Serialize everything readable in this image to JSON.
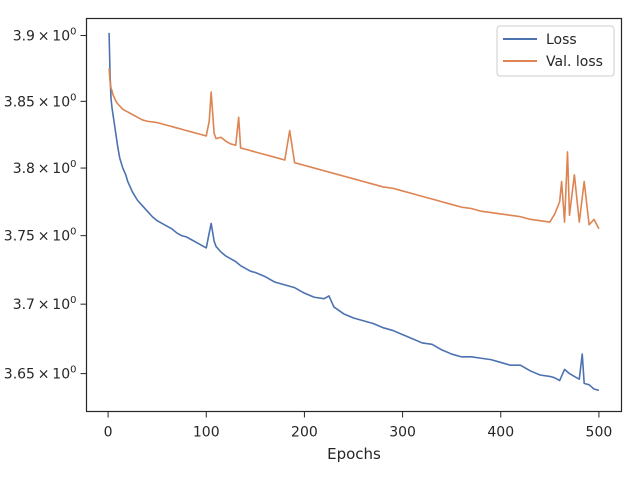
{
  "chart_data": {
    "type": "line",
    "title": "",
    "xlabel": "Epochs",
    "ylabel": "",
    "yscale": "log",
    "xlim": [
      -22,
      523
    ],
    "ylim": [
      3.623,
      3.913
    ],
    "grid": false,
    "legend_position": "top-right",
    "x_ticks": [
      {
        "value": 0,
        "label": "0"
      },
      {
        "value": 100,
        "label": "100"
      },
      {
        "value": 200,
        "label": "200"
      },
      {
        "value": 300,
        "label": "300"
      },
      {
        "value": 400,
        "label": "400"
      },
      {
        "value": 500,
        "label": "500"
      }
    ],
    "y_ticks": [
      {
        "value": 3.65,
        "mantissa": "3.65",
        "base": "10",
        "exp": "0"
      },
      {
        "value": 3.7,
        "mantissa": "3.7",
        "base": "10",
        "exp": "0"
      },
      {
        "value": 3.75,
        "mantissa": "3.75",
        "base": "10",
        "exp": "0"
      },
      {
        "value": 3.8,
        "mantissa": "3.8",
        "base": "10",
        "exp": "0"
      },
      {
        "value": 3.85,
        "mantissa": "3.85",
        "base": "10",
        "exp": "0"
      },
      {
        "value": 3.9,
        "mantissa": "3.9",
        "base": "10",
        "exp": "0"
      }
    ],
    "series": [
      {
        "name": "Loss",
        "color": "#4c72b0",
        "x": [
          1,
          2,
          3,
          4,
          5,
          6,
          8,
          10,
          12,
          15,
          18,
          20,
          25,
          30,
          35,
          40,
          45,
          50,
          55,
          60,
          65,
          70,
          75,
          80,
          85,
          90,
          95,
          100,
          103,
          105,
          108,
          110,
          115,
          120,
          125,
          130,
          135,
          140,
          145,
          150,
          160,
          170,
          180,
          190,
          200,
          210,
          220,
          225,
          230,
          240,
          250,
          260,
          270,
          280,
          290,
          300,
          310,
          320,
          330,
          340,
          350,
          360,
          370,
          380,
          390,
          400,
          410,
          420,
          430,
          440,
          450,
          455,
          460,
          465,
          470,
          475,
          480,
          483,
          485,
          490,
          495,
          500
        ],
        "y": [
          3.902,
          3.87,
          3.852,
          3.845,
          3.84,
          3.835,
          3.825,
          3.815,
          3.807,
          3.8,
          3.795,
          3.79,
          3.782,
          3.776,
          3.772,
          3.768,
          3.764,
          3.761,
          3.759,
          3.757,
          3.755,
          3.752,
          3.75,
          3.749,
          3.747,
          3.745,
          3.743,
          3.741,
          3.752,
          3.759,
          3.746,
          3.742,
          3.738,
          3.735,
          3.733,
          3.731,
          3.728,
          3.726,
          3.724,
          3.723,
          3.72,
          3.716,
          3.714,
          3.712,
          3.708,
          3.705,
          3.704,
          3.706,
          3.698,
          3.693,
          3.69,
          3.688,
          3.686,
          3.683,
          3.681,
          3.678,
          3.675,
          3.672,
          3.671,
          3.667,
          3.664,
          3.662,
          3.662,
          3.661,
          3.66,
          3.658,
          3.656,
          3.656,
          3.652,
          3.649,
          3.648,
          3.647,
          3.645,
          3.653,
          3.65,
          3.648,
          3.646,
          3.664,
          3.643,
          3.642,
          3.639,
          3.638
        ]
      },
      {
        "name": "Val. loss",
        "color": "#dd8452",
        "x": [
          1,
          2,
          3,
          4,
          5,
          8,
          10,
          15,
          20,
          25,
          30,
          35,
          40,
          50,
          60,
          70,
          75,
          80,
          85,
          90,
          95,
          100,
          103,
          105,
          108,
          110,
          115,
          120,
          125,
          130,
          133,
          135,
          140,
          150,
          160,
          170,
          180,
          185,
          190,
          200,
          210,
          220,
          230,
          240,
          250,
          260,
          270,
          280,
          290,
          300,
          310,
          320,
          330,
          340,
          350,
          360,
          370,
          380,
          390,
          400,
          410,
          420,
          430,
          440,
          450,
          455,
          460,
          462,
          465,
          468,
          470,
          475,
          480,
          485,
          490,
          495,
          500
        ],
        "y": [
          3.875,
          3.865,
          3.86,
          3.858,
          3.855,
          3.85,
          3.848,
          3.844,
          3.842,
          3.84,
          3.838,
          3.836,
          3.835,
          3.834,
          3.832,
          3.83,
          3.829,
          3.828,
          3.827,
          3.826,
          3.825,
          3.824,
          3.835,
          3.857,
          3.826,
          3.822,
          3.823,
          3.82,
          3.818,
          3.817,
          3.838,
          3.815,
          3.814,
          3.812,
          3.81,
          3.808,
          3.806,
          3.828,
          3.804,
          3.802,
          3.8,
          3.798,
          3.796,
          3.794,
          3.792,
          3.79,
          3.788,
          3.786,
          3.785,
          3.783,
          3.781,
          3.779,
          3.777,
          3.775,
          3.773,
          3.771,
          3.77,
          3.768,
          3.767,
          3.766,
          3.765,
          3.764,
          3.762,
          3.761,
          3.76,
          3.766,
          3.775,
          3.79,
          3.76,
          3.812,
          3.765,
          3.795,
          3.76,
          3.79,
          3.758,
          3.762,
          3.755
        ]
      }
    ]
  }
}
